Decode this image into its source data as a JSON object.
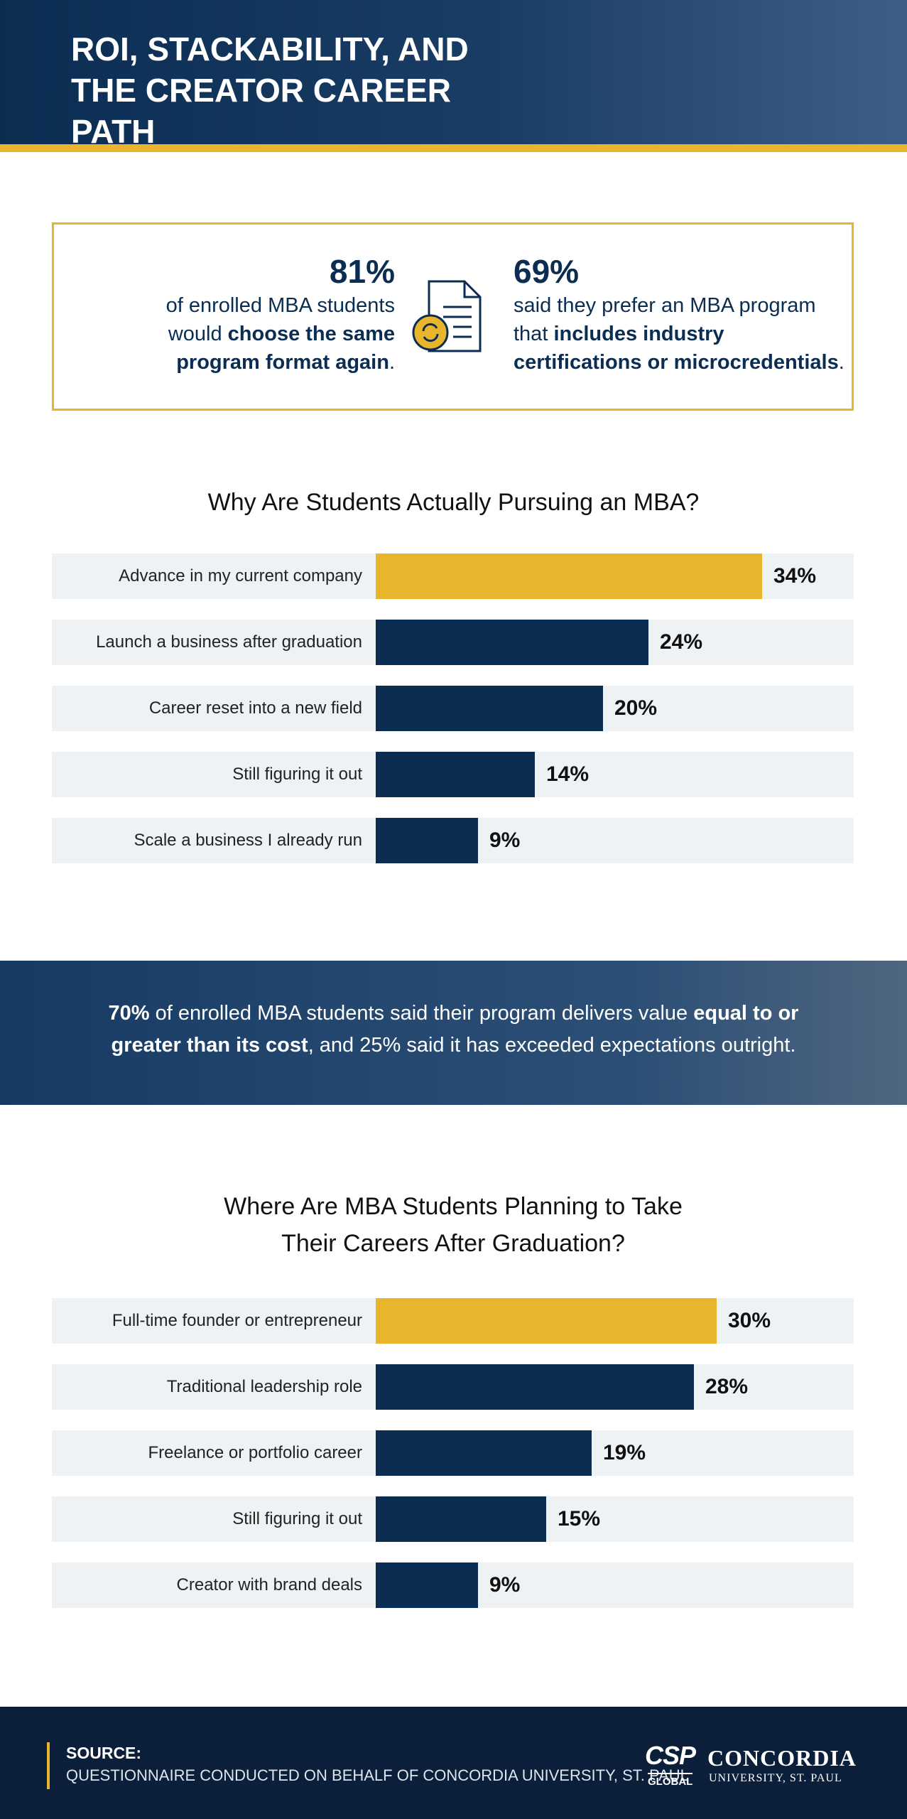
{
  "header": {
    "title": "ROI, STACKABILITY, AND THE CREATOR CAREER PATH"
  },
  "stats": [
    {
      "number": "81%",
      "segments": [
        {
          "text": "of enrolled MBA students would ",
          "bold": false
        },
        {
          "text": "choose the same program format again",
          "bold": true
        },
        {
          "text": ".",
          "bold": false
        }
      ]
    },
    {
      "number": "69%",
      "segments": [
        {
          "text": "said they prefer an MBA program that ",
          "bold": false
        },
        {
          "text": "includes industry certifications or microcredentials",
          "bold": true
        },
        {
          "text": ".",
          "bold": false
        }
      ]
    }
  ],
  "banner": {
    "segments": [
      {
        "text": "70%",
        "bold": true
      },
      {
        "text": " of enrolled MBA students said their program delivers value ",
        "bold": false
      },
      {
        "text": "equal to or greater than its cost",
        "bold": true
      },
      {
        "text": ", and 25% said it has exceeded expectations outright.",
        "bold": false
      }
    ]
  },
  "chart_data": [
    {
      "type": "bar",
      "title": "Why Are Students Actually Pursuing an MBA?",
      "categories": [
        "Advance in my current company",
        "Launch a business after graduation",
        "Career reset into a new field",
        "Still figuring it out",
        "Scale a business I already run"
      ],
      "values": [
        34,
        24,
        20,
        14,
        9
      ],
      "value_labels": [
        "34%",
        "24%",
        "20%",
        "14%",
        "9%"
      ],
      "colors": [
        "#e8b52c",
        "#0b2d52",
        "#0b2d52",
        "#0b2d52",
        "#0b2d52"
      ]
    },
    {
      "type": "bar",
      "title": "Where Are MBA Students Planning to Take Their Careers After Graduation?",
      "categories": [
        "Full-time founder or entrepreneur",
        "Traditional leadership role",
        "Freelance or portfolio career",
        "Still figuring it out",
        "Creator with brand deals"
      ],
      "values": [
        30,
        28,
        19,
        15,
        9
      ],
      "value_labels": [
        "30%",
        "28%",
        "19%",
        "15%",
        "9%"
      ],
      "colors": [
        "#e8b52c",
        "#0b2d52",
        "#0b2d52",
        "#0b2d52",
        "#0b2d52"
      ]
    }
  ],
  "footer": {
    "source_label": "SOURCE:",
    "source_text": "QUESTIONNAIRE CONDUCTED ON BEHALF OF CONCORDIA UNIVERSITY, ST. PAUL",
    "logo_mark": "CSP",
    "logo_sub": "GLOBAL",
    "logo_name": "CONCORDIA",
    "logo_tagline": "UNIVERSITY, ST. PAUL"
  }
}
